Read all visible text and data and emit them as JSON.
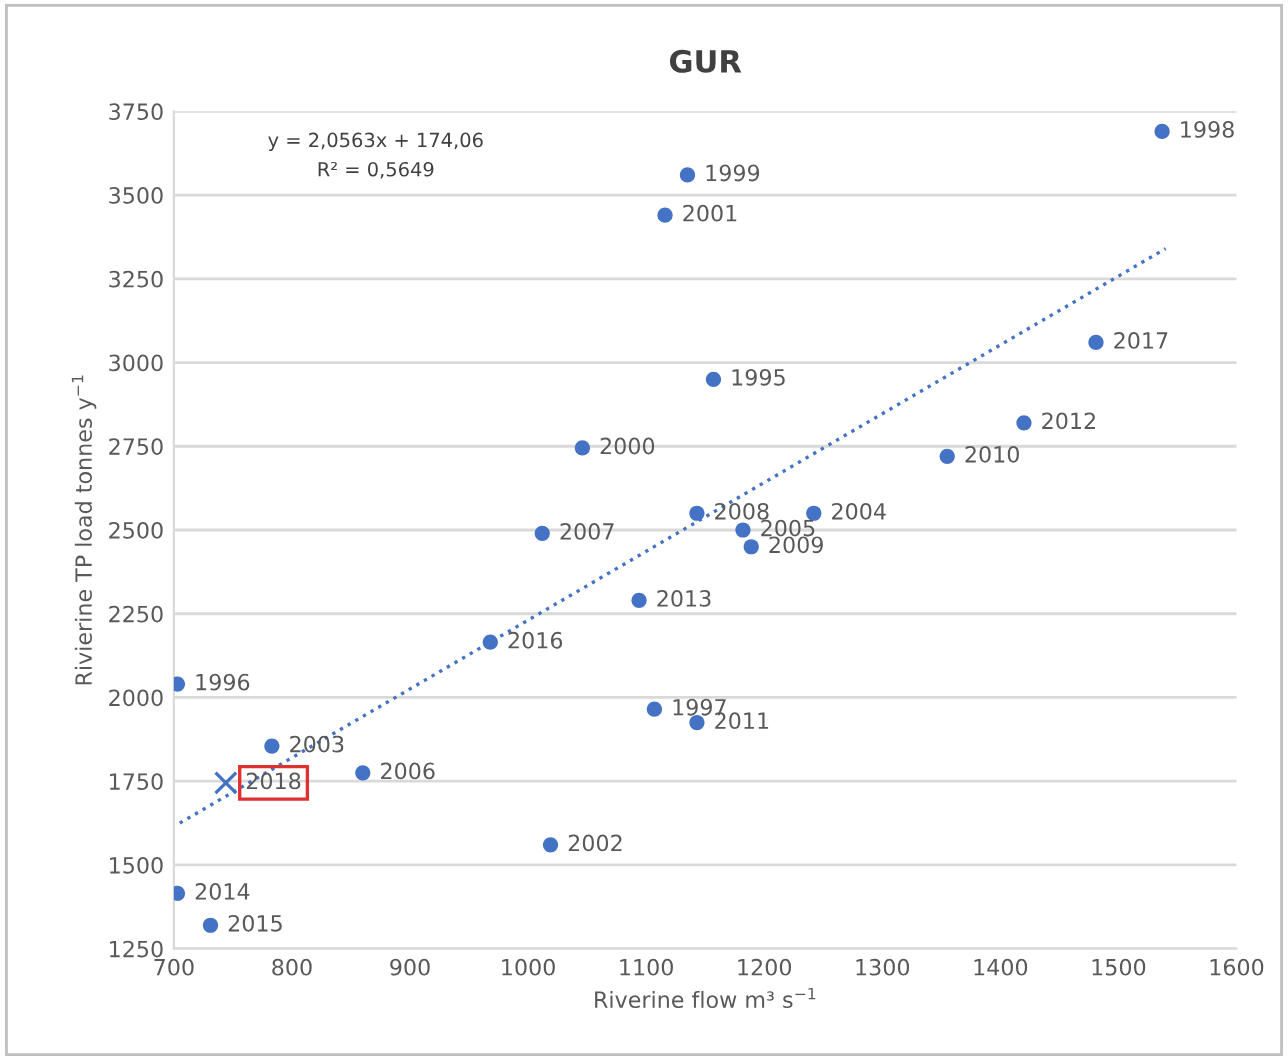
{
  "chart_data": {
    "type": "scatter",
    "title": "GUR",
    "xlabel": "Riverine flow m³ s$^{−1}$",
    "ylabel": "Rivierine TP load tonnes y$^{−1}$",
    "xlim": [
      700,
      1600
    ],
    "xticks": [
      700,
      800,
      900,
      1000,
      1100,
      1200,
      1300,
      1400,
      1500,
      1600
    ],
    "ylim": [
      1250,
      3750
    ],
    "yticks": [
      1250,
      1500,
      1750,
      2000,
      2250,
      2500,
      2750,
      3000,
      3250,
      3500,
      3750
    ],
    "grid": "y",
    "legend": false,
    "marker": "circle",
    "series": [
      {
        "color": "#4472c4",
        "x": [
          1537,
          1135,
          1116,
          1481,
          1157,
          1420,
          1046,
          1355,
          1143,
          1242,
          1182,
          1189,
          1012,
          1094,
          968,
          703,
          1107,
          1143,
          783,
          860,
          1019,
          703,
          731
        ],
        "values": [
          3690,
          3560,
          3440,
          3060,
          2950,
          2820,
          2745,
          2720,
          2550,
          2550,
          2500,
          2450,
          2490,
          2290,
          2165,
          2040,
          1965,
          1925,
          1855,
          1775,
          1560,
          1415,
          1320
        ]
      },
      {
        "name": "2018",
        "color": "#4472c4",
        "marker": "cross",
        "x": [
          744
        ],
        "values": [
          1745
        ]
      },
      {
        "type": "line",
        "color": "#4472c4",
        "line_style": "dotted",
        "marker": "none",
        "x": [
          705,
          1540
        ],
        "values": [
          1625,
          3340
        ]
      }
    ],
    "annotations": [
      "y = 2,0563x + 174,06",
      "R² = 0,5649",
      {
        "text": "1998",
        "x": 1537,
        "y": 3690
      },
      {
        "text": "1999",
        "x": 1135,
        "y": 3560
      },
      {
        "text": "2001",
        "x": 1116,
        "y": 3440
      },
      {
        "text": "2017",
        "x": 1481,
        "y": 3060
      },
      {
        "text": "1995",
        "x": 1157,
        "y": 2950
      },
      {
        "text": "2012",
        "x": 1420,
        "y": 2820
      },
      {
        "text": "2000",
        "x": 1046,
        "y": 2745
      },
      {
        "text": "2010",
        "x": 1355,
        "y": 2720
      },
      {
        "text": "2008",
        "x": 1143,
        "y": 2550
      },
      {
        "text": "2004",
        "x": 1242,
        "y": 2550
      },
      {
        "text": "2005",
        "x": 1182,
        "y": 2500
      },
      {
        "text": "2009",
        "x": 1189,
        "y": 2450
      },
      {
        "text": "2007",
        "x": 1012,
        "y": 2490
      },
      {
        "text": "2013",
        "x": 1094,
        "y": 2290
      },
      {
        "text": "2016",
        "x": 968,
        "y": 2165
      },
      {
        "text": "1996",
        "x": 703,
        "y": 2040
      },
      {
        "text": "1997",
        "x": 1107,
        "y": 1965
      },
      {
        "text": "2011",
        "x": 1143,
        "y": 1925
      },
      {
        "text": "2003",
        "x": 783,
        "y": 1855
      },
      {
        "text": "2006",
        "x": 860,
        "y": 1775
      },
      {
        "text": "2002",
        "x": 1019,
        "y": 1560
      },
      {
        "text": "2014",
        "x": 703,
        "y": 1415
      },
      {
        "text": "2015",
        "x": 731,
        "y": 1320
      }
    ]
  }
}
